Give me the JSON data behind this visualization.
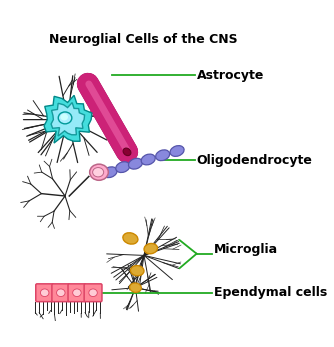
{
  "title": "Neuroglial Cells of the CNS",
  "title_fontsize": 9,
  "title_fontweight": "bold",
  "bg_color": "#ffffff",
  "labels": [
    "Astrocyte",
    "Oligodendrocyte",
    "Microglia",
    "Ependymal cells"
  ],
  "label_fontsize": 9,
  "label_fontweight": "bold",
  "label_color": "#000000",
  "line_color": "#22aa22",
  "line_lw": 1.3,
  "astrocyte_body_color": "#44dddd",
  "astrocyte_highlight_color": "#aaeeff",
  "myelin_color": "#cc2277",
  "myelin_light": "#ee66aa",
  "oligodendro_body_color": "#ffaacc",
  "oligodendro_myelin_color": "#8888dd",
  "oligodendro_myelin_dark": "#5555aa",
  "microglia_body_color": "#ddaa33",
  "microglia_body_dark": "#cc8800",
  "ependymal_color": "#ff8899",
  "ependymal_dark": "#dd4466",
  "branch_color": "#222222",
  "fig_width": 3.34,
  "fig_height": 3.47,
  "dpi": 100
}
